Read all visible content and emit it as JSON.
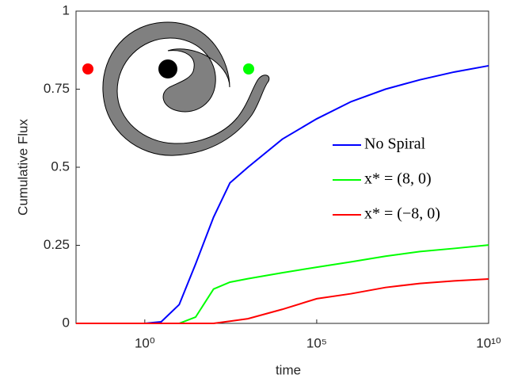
{
  "chart_data": {
    "type": "line",
    "x_label": "time",
    "y_label": "Cumulative Flux",
    "xscale": "log",
    "x": [
      0.01,
      1,
      3,
      10,
      30,
      100,
      300,
      1000,
      10000,
      100000,
      1000000,
      10000000,
      100000000,
      1000000000,
      10000000000
    ],
    "series": [
      {
        "name": "No Spiral",
        "color": "#0000ff",
        "values": [
          0,
          0,
          0.005,
          0.06,
          0.19,
          0.34,
          0.45,
          0.5,
          0.59,
          0.655,
          0.71,
          0.75,
          0.78,
          0.805,
          0.825
        ]
      },
      {
        "name": "x* = (8, 0)",
        "color": "#00ff00",
        "values": [
          0,
          0,
          0,
          0,
          0.02,
          0.11,
          0.132,
          0.143,
          0.162,
          0.18,
          0.197,
          0.215,
          0.23,
          0.24,
          0.251
        ]
      },
      {
        "name": "x* = (−8, 0)",
        "color": "#ff0000",
        "values": [
          0,
          0,
          0,
          0,
          0,
          0,
          0.007,
          0.015,
          0.045,
          0.079,
          0.095,
          0.115,
          0.128,
          0.136,
          0.142
        ]
      }
    ],
    "xlim": [
      0.01,
      10000000000
    ],
    "xticks": [
      {
        "value": 1,
        "label": "10⁰"
      },
      {
        "value": 100000,
        "label": "10⁵"
      },
      {
        "value": 10000000000,
        "label": "10¹⁰"
      }
    ],
    "ylim": [
      0,
      1
    ],
    "yticks": [
      0,
      0.25,
      0.5,
      0.75,
      1
    ],
    "grid": false,
    "legend": "right"
  }
}
